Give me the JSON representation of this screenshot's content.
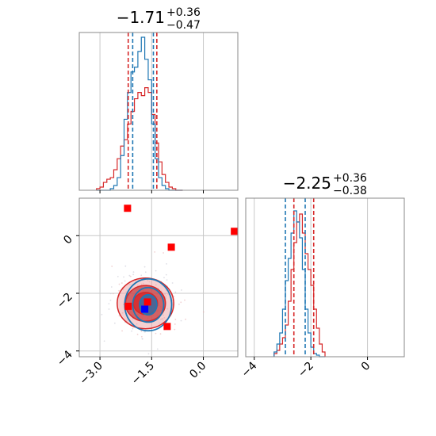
{
  "colors": {
    "red": "#d62728",
    "blue": "#1f77b4",
    "grid": "#c8c8c8",
    "fill_dark": "#c8464a",
    "fill_light": "#eba1a3",
    "marker_red": "#ff0000",
    "marker_blue": "#0000ff"
  },
  "chart_data": [
    {
      "type": "histogram",
      "panel": "top-left",
      "title": {
        "value": "−1.71",
        "upper": "+0.36",
        "lower": "−0.47"
      },
      "xlim": [
        -3.6,
        1.0
      ],
      "grid": true,
      "show_x_ticklabels": false,
      "bin_edges": [
        -3.1,
        -3.0,
        -2.9,
        -2.8,
        -2.7,
        -2.6,
        -2.5,
        -2.4,
        -2.3,
        -2.2,
        -2.1,
        -2.0,
        -1.9,
        -1.8,
        -1.7,
        -1.6,
        -1.5,
        -1.4,
        -1.3,
        -1.2,
        -1.1,
        -1.0,
        -0.9,
        -0.8,
        -0.7,
        -0.6
      ],
      "series": [
        {
          "color": "red",
          "counts": [
            0.01,
            0.02,
            0.05,
            0.07,
            0.08,
            0.13,
            0.2,
            0.28,
            0.32,
            0.42,
            0.5,
            0.58,
            0.62,
            0.6,
            0.65,
            0.62,
            0.48,
            0.3,
            0.18,
            0.1,
            0.05,
            0.02,
            0.01,
            0.0,
            0.0
          ]
        },
        {
          "color": "blue",
          "counts": [
            0.0,
            0.0,
            0.0,
            0.0,
            0.01,
            0.03,
            0.08,
            0.22,
            0.45,
            0.62,
            0.75,
            0.78,
            0.88,
            0.97,
            0.83,
            0.7,
            0.42,
            0.2,
            0.08,
            0.03,
            0.01,
            0.0,
            0.0,
            0.0,
            0.0
          ]
        }
      ],
      "quantile_lines": [
        {
          "color": "red",
          "values": [
            -2.18,
            -1.35
          ]
        },
        {
          "color": "blue",
          "values": [
            -2.05,
            -1.45
          ]
        }
      ]
    },
    {
      "type": "histogram",
      "panel": "bottom-right",
      "title": {
        "value": "−2.25",
        "upper": "+0.36",
        "lower": "−0.38"
      },
      "xlim": [
        -4.3,
        1.3
      ],
      "grid": true,
      "xticks": [
        -4,
        -2,
        0
      ],
      "xtick_labels": [
        "−4",
        "−2",
        "0"
      ],
      "bin_edges": [
        -3.3,
        -3.2,
        -3.1,
        -3.0,
        -2.9,
        -2.8,
        -2.7,
        -2.6,
        -2.5,
        -2.4,
        -2.3,
        -2.2,
        -2.1,
        -2.0,
        -1.9,
        -1.8,
        -1.7,
        -1.6,
        -1.5
      ],
      "series": [
        {
          "color": "red",
          "counts": [
            0.02,
            0.04,
            0.08,
            0.12,
            0.2,
            0.35,
            0.55,
            0.72,
            0.85,
            0.9,
            0.78,
            0.65,
            0.55,
            0.45,
            0.3,
            0.18,
            0.08,
            0.03
          ]
        },
        {
          "color": "blue",
          "counts": [
            0.03,
            0.08,
            0.15,
            0.3,
            0.48,
            0.62,
            0.78,
            0.92,
            0.85,
            0.75,
            0.55,
            0.3,
            0.15,
            0.06,
            0.02,
            0.01,
            0.0,
            0.0
          ]
        }
      ],
      "quantile_lines": [
        {
          "color": "red",
          "values": [
            -2.6,
            -1.9
          ]
        },
        {
          "color": "blue",
          "values": [
            -2.9,
            -2.2
          ]
        }
      ]
    },
    {
      "type": "scatter",
      "panel": "bottom-left",
      "xlim": [
        -3.6,
        1.0
      ],
      "ylim": [
        -4.2,
        1.3
      ],
      "grid": true,
      "xticks": [
        -3.0,
        -1.5,
        0.0
      ],
      "xtick_labels": [
        "−3.0",
        "−1.5",
        "0.0"
      ],
      "yticks": [
        -4,
        -2,
        0
      ],
      "ytick_labels": [
        "−4",
        "−2",
        "0"
      ],
      "contours": [
        {
          "color": "red",
          "style": "filled",
          "cx": -1.68,
          "cy": -2.35,
          "rx": [
            0.35,
            0.58,
            0.82
          ],
          "ry": [
            0.38,
            0.62,
            0.88
          ]
        },
        {
          "color": "blue",
          "style": "line",
          "cx": -1.6,
          "cy": -2.4,
          "rx": [
            0.25,
            0.45,
            0.68
          ],
          "ry": [
            0.35,
            0.6,
            0.9
          ]
        }
      ],
      "points": [
        {
          "x": -2.2,
          "y": 0.95,
          "color": "marker_red"
        },
        {
          "x": 0.9,
          "y": 0.15,
          "color": "marker_red"
        },
        {
          "x": -0.93,
          "y": -0.4,
          "color": "marker_red"
        },
        {
          "x": -2.18,
          "y": -2.45,
          "color": "marker_red"
        },
        {
          "x": -1.62,
          "y": -2.3,
          "color": "marker_red"
        },
        {
          "x": -1.05,
          "y": -3.15,
          "color": "marker_red"
        },
        {
          "x": -1.7,
          "y": -2.55,
          "color": "marker_blue"
        }
      ]
    }
  ]
}
